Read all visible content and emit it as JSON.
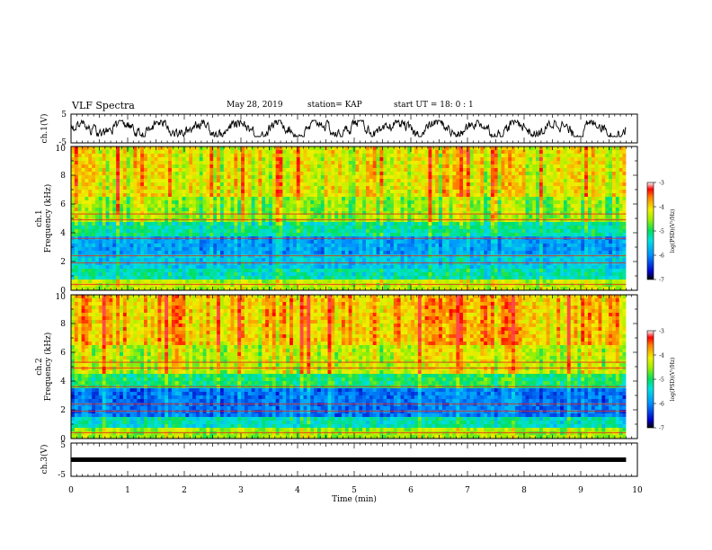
{
  "header": {
    "title": "VLF Spectra",
    "date": "May 28, 2019",
    "station": "station= KAP",
    "start": "start  UT  =   18: 0  : 1"
  },
  "chart_data": [
    {
      "type": "line",
      "panel": "ch1-waveform",
      "ylabel": "ch.1(V)",
      "ylim": [
        -5,
        5
      ],
      "y_ticklabels": [
        "5",
        "-5"
      ],
      "xlim": [
        0,
        10
      ],
      "x_end_data": 9.8,
      "series": [
        {
          "description_note": "",
          "values_note": "",
          "y_range_observed": [
            -2.5,
            2.5
          ]
        }
      ]
    },
    {
      "type": "heatmap",
      "panel": "ch1-spectrogram",
      "ylabel_line1": "ch.1",
      "ylabel_line2": "Frequency (kHz)",
      "ylim": [
        0,
        10
      ],
      "y_ticklabels": [
        "0",
        "2",
        "4",
        "6",
        "8",
        "10"
      ],
      "xlim": [
        0,
        10
      ],
      "x_end_data": 9.8,
      "bands": [
        {
          "from": 0,
          "to": 0.7,
          "level": -4.4
        },
        {
          "from": 0.7,
          "to": 1.4,
          "level": -5.3
        },
        {
          "from": 1.4,
          "to": 2.4,
          "level": -5.6
        },
        {
          "from": 2.4,
          "to": 3.7,
          "level": -5.9
        },
        {
          "from": 3.7,
          "to": 4.8,
          "level": -5.2
        },
        {
          "from": 4.8,
          "to": 6.5,
          "level": -4.6
        },
        {
          "from": 6.5,
          "to": 10,
          "level": -4.2
        }
      ],
      "colorbar": {
        "label": "log(PSD)(V²/Hz)",
        "range": [
          -7,
          -3
        ],
        "ticklabels": [
          "-3",
          "-4",
          "-5",
          "-6",
          "-7"
        ]
      }
    },
    {
      "type": "heatmap",
      "panel": "ch2-spectrogram",
      "ylabel_line1": "ch.2",
      "ylabel_line2": "Frequency (kHz)",
      "ylim": [
        0,
        10
      ],
      "y_ticklabels": [
        "0",
        "2",
        "4",
        "6",
        "8",
        "10"
      ],
      "xlim": [
        0,
        10
      ],
      "x_end_data": 9.8,
      "bands": [
        {
          "from": 0,
          "to": 0.7,
          "level": -4.5
        },
        {
          "from": 0.7,
          "to": 1.6,
          "level": -5.3
        },
        {
          "from": 1.6,
          "to": 3.4,
          "level": -6.1
        },
        {
          "from": 3.4,
          "to": 4.6,
          "level": -5.0
        },
        {
          "from": 4.6,
          "to": 6.5,
          "level": -4.3
        },
        {
          "from": 6.5,
          "to": 10,
          "level": -3.9
        }
      ],
      "colorbar": {
        "label": "log(PSD)(V²/Hz)",
        "range": [
          -7,
          -3
        ],
        "ticklabels": [
          "-3",
          "-4",
          "-5",
          "-6",
          "-7"
        ]
      }
    },
    {
      "type": "line",
      "panel": "ch3-waveform",
      "ylabel": "ch.3(V)",
      "ylim": [
        -5,
        5
      ],
      "y_ticklabels": [
        "5",
        "-5"
      ],
      "xlim": [
        0,
        10
      ],
      "x_end_data": 9.8,
      "series": [
        {
          "constant_value": 0
        }
      ],
      "xlabel": "Time (min)",
      "x_ticklabels": [
        "0",
        "1",
        "2",
        "3",
        "4",
        "5",
        "6",
        "7",
        "8",
        "9",
        "10"
      ]
    }
  ]
}
